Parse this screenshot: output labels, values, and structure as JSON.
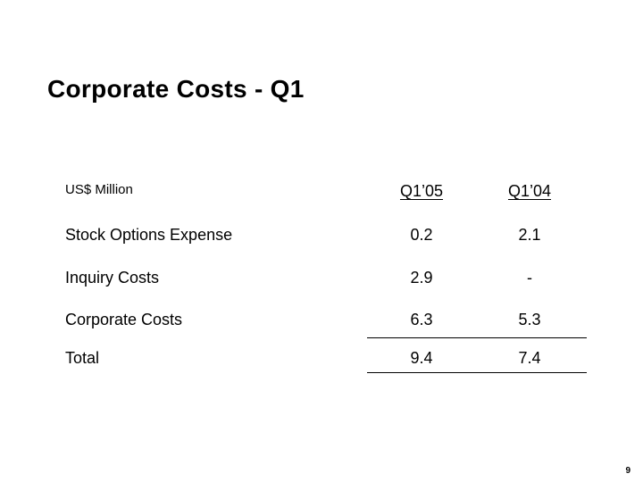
{
  "slide": {
    "title": "Corporate Costs - Q1",
    "page_number": "9"
  },
  "table": {
    "unit_label": "US$ Million",
    "columns": [
      "Q1’05",
      "Q1’04"
    ],
    "rows": [
      {
        "label": "Stock Options Expense",
        "values": [
          "0.2",
          "2.1"
        ]
      },
      {
        "label": "Inquiry Costs",
        "values": [
          "2.9",
          "-"
        ]
      },
      {
        "label": "Corporate Costs",
        "values": [
          "6.3",
          "5.3"
        ]
      },
      {
        "label": "Total",
        "values": [
          "9.4",
          "7.4"
        ]
      }
    ]
  }
}
